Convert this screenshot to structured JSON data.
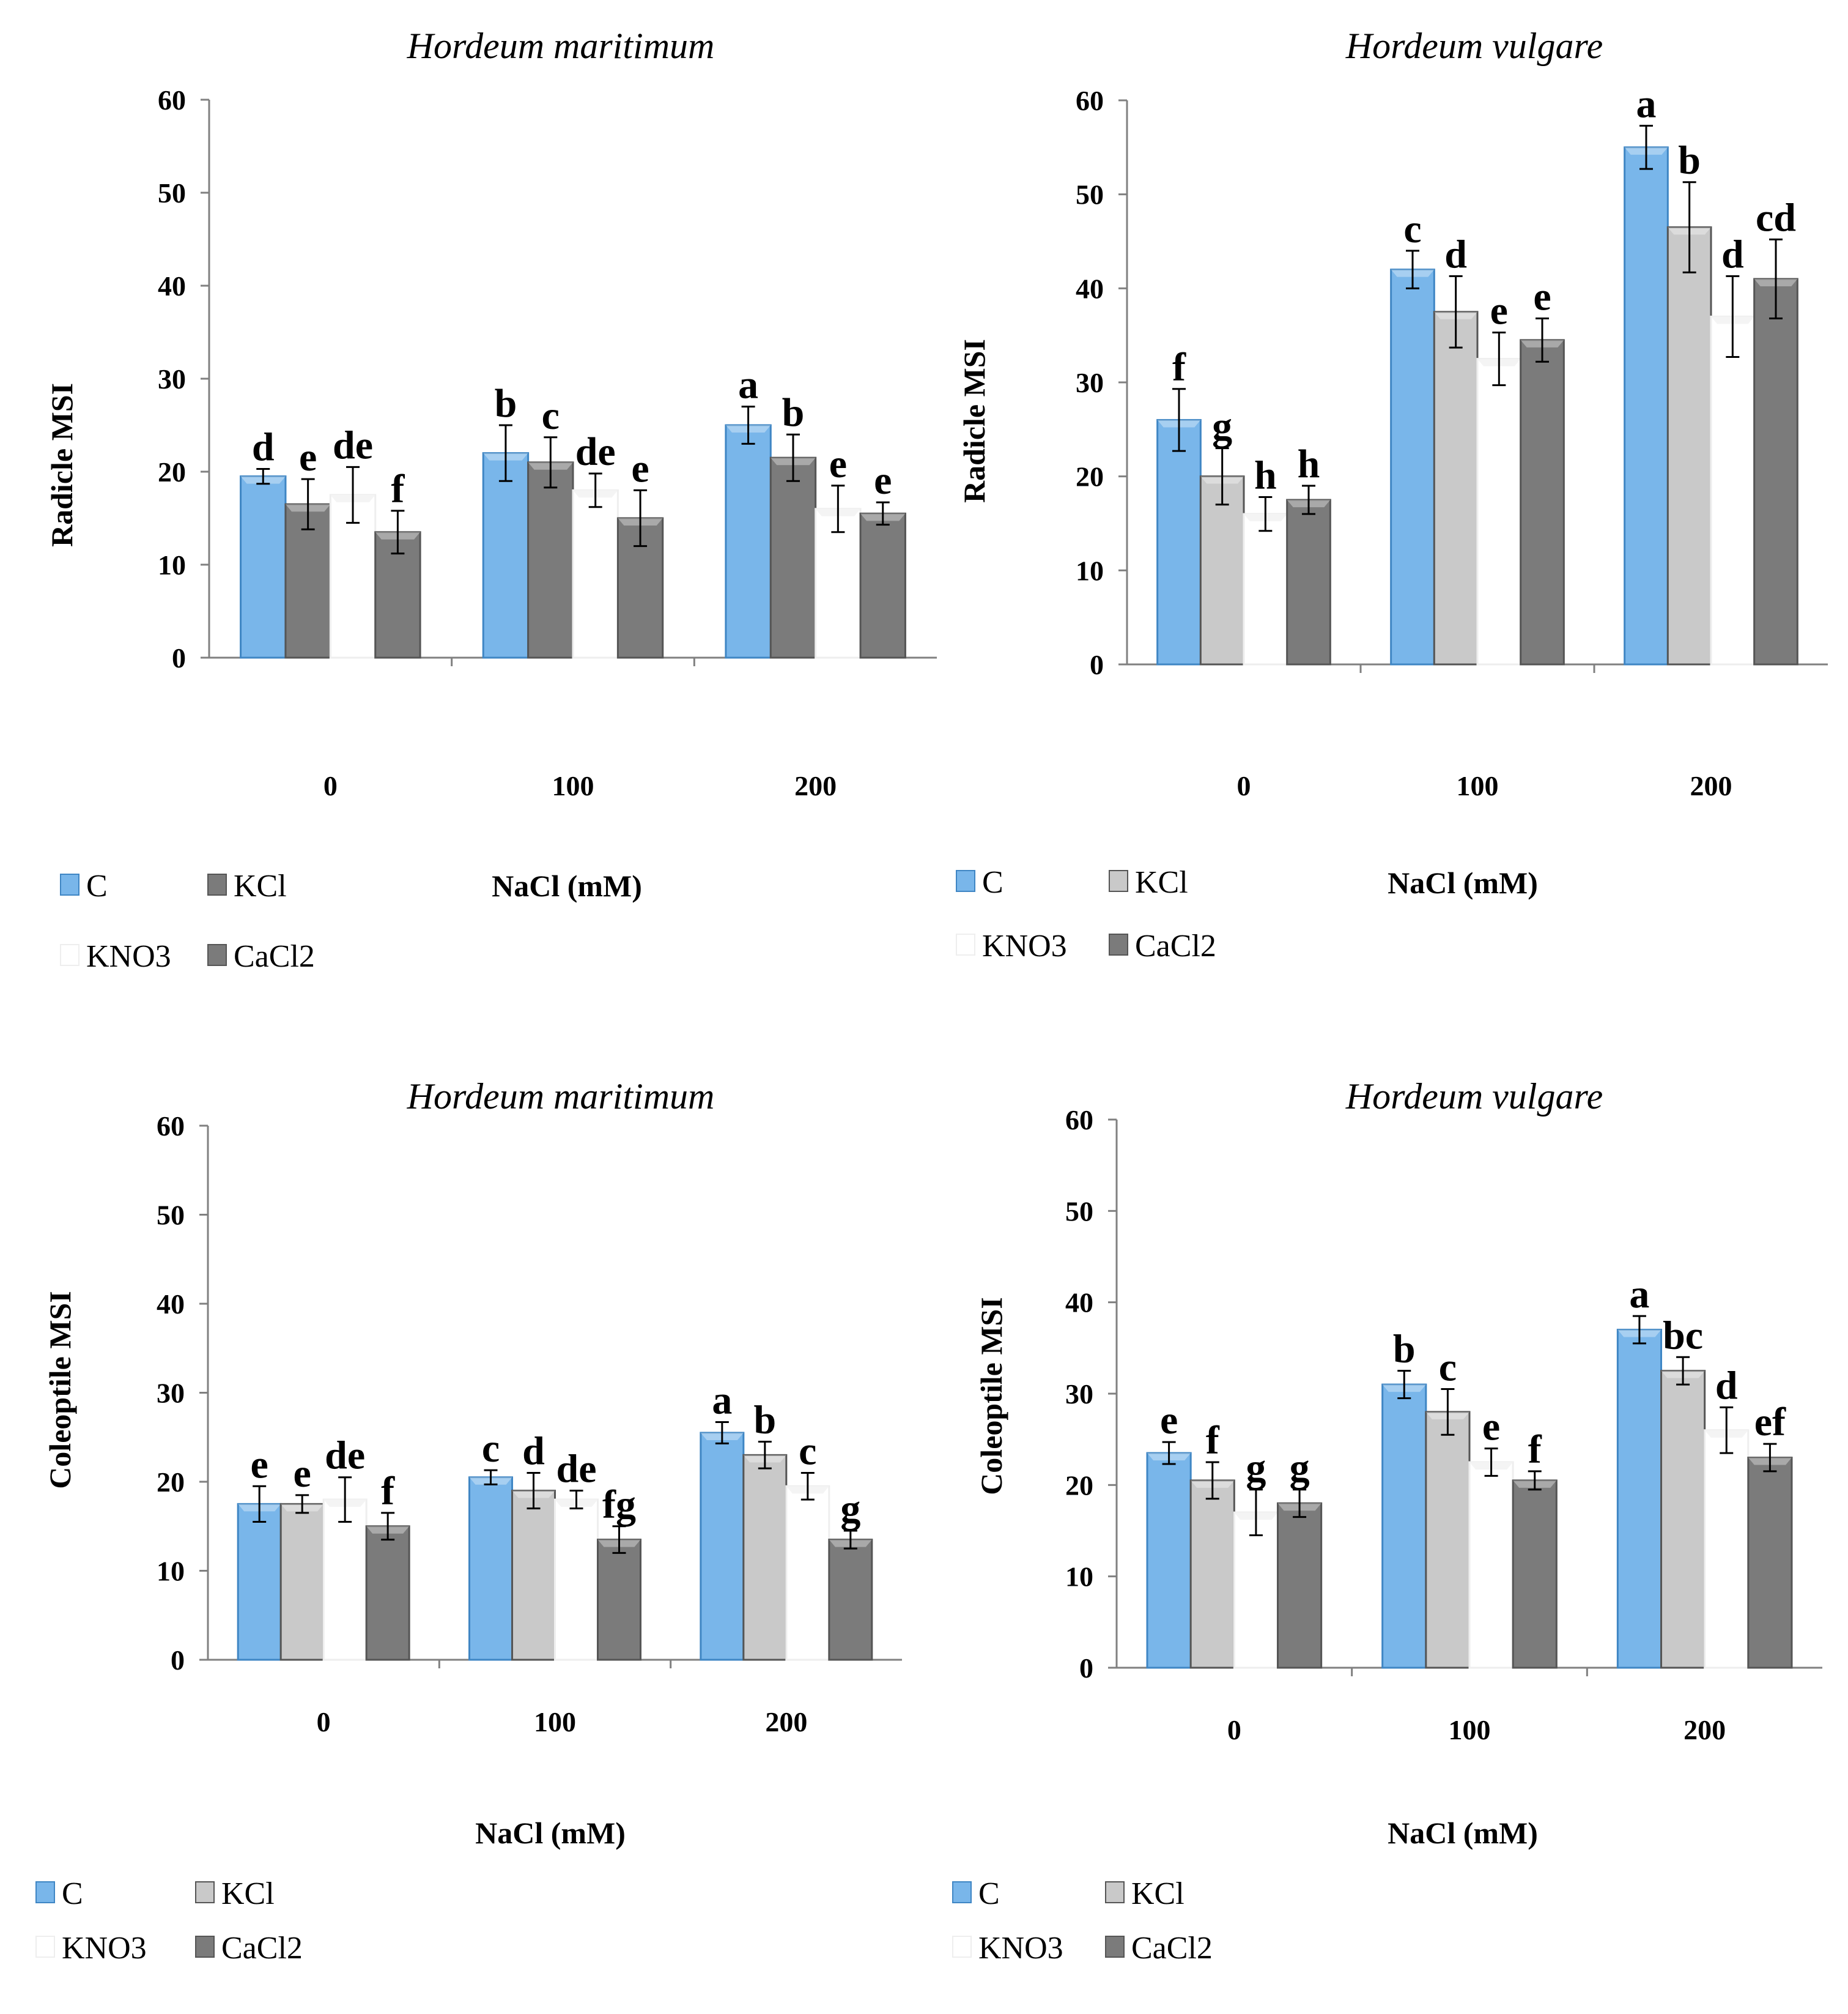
{
  "chart_data": [
    {
      "type": "bar",
      "title": "Hordeum maritimum",
      "ylabel": "Radicle MSI",
      "xlabel": "NaCl (mM)",
      "ylim": [
        0,
        60
      ],
      "yticks": [
        "0",
        "10",
        "20",
        "30",
        "40",
        "50",
        "60"
      ],
      "categories": [
        "0",
        "100",
        "200"
      ],
      "legend": [
        "C",
        "KCl",
        "KNO3",
        "CaCl2"
      ],
      "colors": [
        "#79b6ea",
        "#7b7b7b",
        "#ffffff",
        "#7b7b7b"
      ],
      "series": [
        {
          "name": "C",
          "values": [
            19.5,
            22,
            25
          ],
          "err": [
            0.8,
            3,
            2
          ],
          "letters": [
            "d",
            "b",
            "a"
          ]
        },
        {
          "name": "KCl",
          "values": [
            16.5,
            21,
            21.5
          ],
          "err": [
            2.7,
            2.7,
            2.5
          ],
          "letters": [
            "e",
            "c",
            "b"
          ]
        },
        {
          "name": "KNO3",
          "values": [
            17.5,
            18,
            16
          ],
          "err": [
            3,
            1.8,
            2.5
          ],
          "letters": [
            "de",
            "de",
            "e"
          ]
        },
        {
          "name": "CaCl2",
          "values": [
            13.5,
            15,
            15.5
          ],
          "err": [
            2.3,
            3,
            1.2
          ],
          "letters": [
            "f",
            "e",
            "e"
          ]
        }
      ]
    },
    {
      "type": "bar",
      "title": "Hordeum vulgare",
      "ylabel": "Radicle MSI",
      "xlabel": "NaCl (mM)",
      "ylim": [
        0,
        60
      ],
      "yticks": [
        "0",
        "10",
        "20",
        "30",
        "40",
        "50",
        "60"
      ],
      "categories": [
        "0",
        "100",
        "200"
      ],
      "legend": [
        "C",
        "KCl",
        "KNO3",
        "CaCl2"
      ],
      "colors": [
        "#79b6ea",
        "#c9c9c9",
        "#ffffff",
        "#7b7b7b"
      ],
      "series": [
        {
          "name": "C",
          "values": [
            26,
            42,
            55
          ],
          "err": [
            3.3,
            2,
            2.3
          ],
          "letters": [
            "f",
            "c",
            "a"
          ]
        },
        {
          "name": "KCl",
          "values": [
            20,
            37.5,
            46.5
          ],
          "err": [
            3,
            3.8,
            4.8
          ],
          "letters": [
            "g",
            "d",
            "b"
          ]
        },
        {
          "name": "KNO3",
          "values": [
            16,
            32.5,
            37
          ],
          "err": [
            1.8,
            2.8,
            4.3
          ],
          "letters": [
            "h",
            "e",
            "d"
          ]
        },
        {
          "name": "CaCl2",
          "values": [
            17.5,
            34.5,
            41
          ],
          "err": [
            1.5,
            2.3,
            4.2
          ],
          "letters": [
            "h",
            "e",
            "cd"
          ]
        }
      ]
    },
    {
      "type": "bar",
      "title": "Hordeum maritimum",
      "ylabel": "Coleoptile MSI",
      "xlabel": "NaCl (mM)",
      "ylim": [
        0,
        60
      ],
      "yticks": [
        "0",
        "10",
        "20",
        "30",
        "40",
        "50",
        "60"
      ],
      "categories": [
        "0",
        "100",
        "200"
      ],
      "legend": [
        "C",
        "KCl",
        "KNO3",
        "CaCl2"
      ],
      "colors": [
        "#79b6ea",
        "#c9c9c9",
        "#ffffff",
        "#7b7b7b"
      ],
      "series": [
        {
          "name": "C",
          "values": [
            17.5,
            20.5,
            25.5
          ],
          "err": [
            2,
            0.8,
            1.2
          ],
          "letters": [
            "e",
            "c",
            "a"
          ]
        },
        {
          "name": "KCl",
          "values": [
            17.5,
            19,
            23
          ],
          "err": [
            1,
            2,
            1.5
          ],
          "letters": [
            "e",
            "d",
            "b"
          ]
        },
        {
          "name": "KNO3",
          "values": [
            18,
            18,
            19.5
          ],
          "err": [
            2.5,
            1,
            1.5
          ],
          "letters": [
            "de",
            "de",
            "c"
          ]
        },
        {
          "name": "CaCl2",
          "values": [
            15,
            13.5,
            13.5
          ],
          "err": [
            1.5,
            1.5,
            1
          ],
          "letters": [
            "f",
            "fg",
            "g"
          ]
        }
      ]
    },
    {
      "type": "bar",
      "title": "Hordeum vulgare",
      "ylabel": "Coleoptile MSI",
      "xlabel": "NaCl (mM)",
      "ylim": [
        0,
        60
      ],
      "yticks": [
        "0",
        "10",
        "20",
        "30",
        "40",
        "50",
        "60"
      ],
      "categories": [
        "0",
        "100",
        "200"
      ],
      "legend": [
        "C",
        "KCl",
        "KNO3",
        "CaCl2"
      ],
      "colors": [
        "#79b6ea",
        "#c9c9c9",
        "#ffffff",
        "#7b7b7b"
      ],
      "series": [
        {
          "name": "C",
          "values": [
            23.5,
            31,
            37
          ],
          "err": [
            1.2,
            1.5,
            1.5
          ],
          "letters": [
            "e",
            "b",
            "a"
          ]
        },
        {
          "name": "KCl",
          "values": [
            20.5,
            28,
            32.5
          ],
          "err": [
            2,
            2.5,
            1.5
          ],
          "letters": [
            "f",
            "c",
            "bc"
          ]
        },
        {
          "name": "KNO3",
          "values": [
            17,
            22.5,
            26
          ],
          "err": [
            2.5,
            1.5,
            2.5
          ],
          "letters": [
            "g",
            "e",
            "d"
          ]
        },
        {
          "name": "CaCl2",
          "values": [
            18,
            20.5,
            23
          ],
          "err": [
            1.5,
            1,
            1.5
          ],
          "letters": [
            "g",
            "f",
            "ef"
          ]
        }
      ]
    }
  ]
}
